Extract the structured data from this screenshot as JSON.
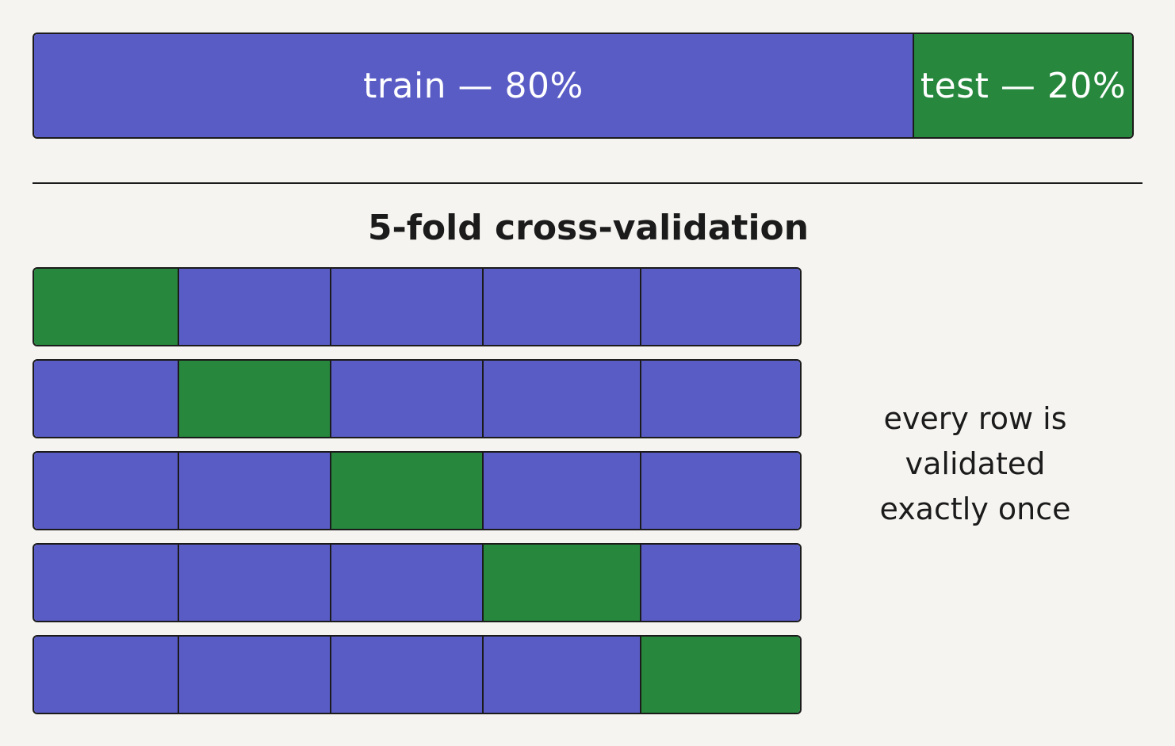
{
  "split": {
    "segments": [
      {
        "label": "train — 80%",
        "fraction": 0.8,
        "color": "#5a5cc6",
        "kind": "train"
      },
      {
        "label": "test — 20%",
        "fraction": 0.2,
        "color": "#26873d",
        "kind": "test"
      }
    ]
  },
  "cv": {
    "title": "5-fold cross-validation",
    "folds": 5,
    "train_color": "#5a5cc6",
    "validation_color": "#26873d",
    "rows": [
      {
        "validation_fold": 1
      },
      {
        "validation_fold": 2
      },
      {
        "validation_fold": 3
      },
      {
        "validation_fold": 4
      },
      {
        "validation_fold": 5
      }
    ]
  },
  "note": {
    "lines": [
      "every row is",
      "validated",
      "exactly once"
    ]
  }
}
